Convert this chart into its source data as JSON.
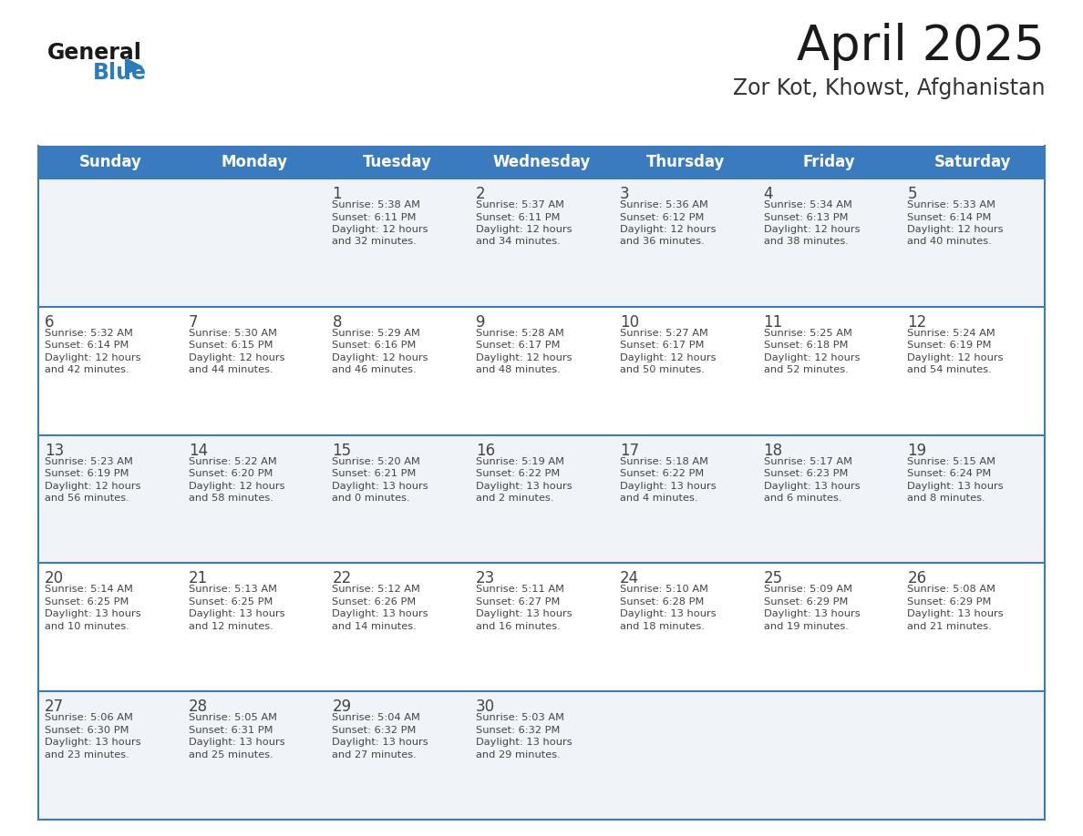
{
  "title": "April 2025",
  "subtitle": "Zor Kot, Khowst, Afghanistan",
  "days_of_week": [
    "Sunday",
    "Monday",
    "Tuesday",
    "Wednesday",
    "Thursday",
    "Friday",
    "Saturday"
  ],
  "header_bg": "#3a7abf",
  "header_text": "#ffffff",
  "row_bg_odd": "#f0f4f8",
  "row_bg_even": "#ffffff",
  "border_color": "#3a7abf",
  "text_color": "#444444",
  "title_color": "#1a1a1a",
  "subtitle_color": "#333333",
  "calendar": [
    [
      {
        "day": "",
        "sunrise": "",
        "sunset": "",
        "daylight": ""
      },
      {
        "day": "",
        "sunrise": "",
        "sunset": "",
        "daylight": ""
      },
      {
        "day": "1",
        "sunrise": "Sunrise: 5:38 AM",
        "sunset": "Sunset: 6:11 PM",
        "daylight": "Daylight: 12 hours\nand 32 minutes."
      },
      {
        "day": "2",
        "sunrise": "Sunrise: 5:37 AM",
        "sunset": "Sunset: 6:11 PM",
        "daylight": "Daylight: 12 hours\nand 34 minutes."
      },
      {
        "day": "3",
        "sunrise": "Sunrise: 5:36 AM",
        "sunset": "Sunset: 6:12 PM",
        "daylight": "Daylight: 12 hours\nand 36 minutes."
      },
      {
        "day": "4",
        "sunrise": "Sunrise: 5:34 AM",
        "sunset": "Sunset: 6:13 PM",
        "daylight": "Daylight: 12 hours\nand 38 minutes."
      },
      {
        "day": "5",
        "sunrise": "Sunrise: 5:33 AM",
        "sunset": "Sunset: 6:14 PM",
        "daylight": "Daylight: 12 hours\nand 40 minutes."
      }
    ],
    [
      {
        "day": "6",
        "sunrise": "Sunrise: 5:32 AM",
        "sunset": "Sunset: 6:14 PM",
        "daylight": "Daylight: 12 hours\nand 42 minutes."
      },
      {
        "day": "7",
        "sunrise": "Sunrise: 5:30 AM",
        "sunset": "Sunset: 6:15 PM",
        "daylight": "Daylight: 12 hours\nand 44 minutes."
      },
      {
        "day": "8",
        "sunrise": "Sunrise: 5:29 AM",
        "sunset": "Sunset: 6:16 PM",
        "daylight": "Daylight: 12 hours\nand 46 minutes."
      },
      {
        "day": "9",
        "sunrise": "Sunrise: 5:28 AM",
        "sunset": "Sunset: 6:17 PM",
        "daylight": "Daylight: 12 hours\nand 48 minutes."
      },
      {
        "day": "10",
        "sunrise": "Sunrise: 5:27 AM",
        "sunset": "Sunset: 6:17 PM",
        "daylight": "Daylight: 12 hours\nand 50 minutes."
      },
      {
        "day": "11",
        "sunrise": "Sunrise: 5:25 AM",
        "sunset": "Sunset: 6:18 PM",
        "daylight": "Daylight: 12 hours\nand 52 minutes."
      },
      {
        "day": "12",
        "sunrise": "Sunrise: 5:24 AM",
        "sunset": "Sunset: 6:19 PM",
        "daylight": "Daylight: 12 hours\nand 54 minutes."
      }
    ],
    [
      {
        "day": "13",
        "sunrise": "Sunrise: 5:23 AM",
        "sunset": "Sunset: 6:19 PM",
        "daylight": "Daylight: 12 hours\nand 56 minutes."
      },
      {
        "day": "14",
        "sunrise": "Sunrise: 5:22 AM",
        "sunset": "Sunset: 6:20 PM",
        "daylight": "Daylight: 12 hours\nand 58 minutes."
      },
      {
        "day": "15",
        "sunrise": "Sunrise: 5:20 AM",
        "sunset": "Sunset: 6:21 PM",
        "daylight": "Daylight: 13 hours\nand 0 minutes."
      },
      {
        "day": "16",
        "sunrise": "Sunrise: 5:19 AM",
        "sunset": "Sunset: 6:22 PM",
        "daylight": "Daylight: 13 hours\nand 2 minutes."
      },
      {
        "day": "17",
        "sunrise": "Sunrise: 5:18 AM",
        "sunset": "Sunset: 6:22 PM",
        "daylight": "Daylight: 13 hours\nand 4 minutes."
      },
      {
        "day": "18",
        "sunrise": "Sunrise: 5:17 AM",
        "sunset": "Sunset: 6:23 PM",
        "daylight": "Daylight: 13 hours\nand 6 minutes."
      },
      {
        "day": "19",
        "sunrise": "Sunrise: 5:15 AM",
        "sunset": "Sunset: 6:24 PM",
        "daylight": "Daylight: 13 hours\nand 8 minutes."
      }
    ],
    [
      {
        "day": "20",
        "sunrise": "Sunrise: 5:14 AM",
        "sunset": "Sunset: 6:25 PM",
        "daylight": "Daylight: 13 hours\nand 10 minutes."
      },
      {
        "day": "21",
        "sunrise": "Sunrise: 5:13 AM",
        "sunset": "Sunset: 6:25 PM",
        "daylight": "Daylight: 13 hours\nand 12 minutes."
      },
      {
        "day": "22",
        "sunrise": "Sunrise: 5:12 AM",
        "sunset": "Sunset: 6:26 PM",
        "daylight": "Daylight: 13 hours\nand 14 minutes."
      },
      {
        "day": "23",
        "sunrise": "Sunrise: 5:11 AM",
        "sunset": "Sunset: 6:27 PM",
        "daylight": "Daylight: 13 hours\nand 16 minutes."
      },
      {
        "day": "24",
        "sunrise": "Sunrise: 5:10 AM",
        "sunset": "Sunset: 6:28 PM",
        "daylight": "Daylight: 13 hours\nand 18 minutes."
      },
      {
        "day": "25",
        "sunrise": "Sunrise: 5:09 AM",
        "sunset": "Sunset: 6:29 PM",
        "daylight": "Daylight: 13 hours\nand 19 minutes."
      },
      {
        "day": "26",
        "sunrise": "Sunrise: 5:08 AM",
        "sunset": "Sunset: 6:29 PM",
        "daylight": "Daylight: 13 hours\nand 21 minutes."
      }
    ],
    [
      {
        "day": "27",
        "sunrise": "Sunrise: 5:06 AM",
        "sunset": "Sunset: 6:30 PM",
        "daylight": "Daylight: 13 hours\nand 23 minutes."
      },
      {
        "day": "28",
        "sunrise": "Sunrise: 5:05 AM",
        "sunset": "Sunset: 6:31 PM",
        "daylight": "Daylight: 13 hours\nand 25 minutes."
      },
      {
        "day": "29",
        "sunrise": "Sunrise: 5:04 AM",
        "sunset": "Sunset: 6:32 PM",
        "daylight": "Daylight: 13 hours\nand 27 minutes."
      },
      {
        "day": "30",
        "sunrise": "Sunrise: 5:03 AM",
        "sunset": "Sunset: 6:32 PM",
        "daylight": "Daylight: 13 hours\nand 29 minutes."
      },
      {
        "day": "",
        "sunrise": "",
        "sunset": "",
        "daylight": ""
      },
      {
        "day": "",
        "sunrise": "",
        "sunset": "",
        "daylight": ""
      },
      {
        "day": "",
        "sunrise": "",
        "sunset": "",
        "daylight": ""
      }
    ]
  ],
  "logo_color_general": "#1a1a1a",
  "logo_color_blue": "#2b7bbf",
  "logo_triangle_color": "#2b7bbf",
  "fig_width": 11.88,
  "fig_height": 9.18,
  "dpi": 100
}
